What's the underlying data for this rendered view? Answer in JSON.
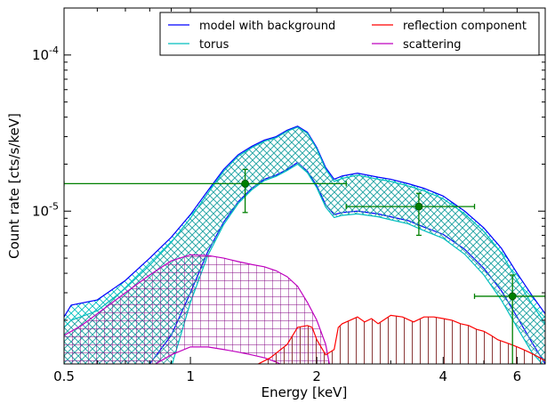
{
  "chart_data": {
    "type": "line",
    "title": "",
    "xlabel": "Energy [keV]",
    "ylabel": "Count rate [cts/s/keV]",
    "xscale": "log",
    "yscale": "log",
    "xlim": [
      0.5,
      7.0
    ],
    "ylim": [
      1.05e-06,
      0.0002
    ],
    "grid": false,
    "legend_position": "top-right",
    "x_ticks": [
      {
        "value": 0.5,
        "label": "0.5"
      },
      {
        "value": 1,
        "label": "1"
      },
      {
        "value": 2,
        "label": "2"
      },
      {
        "value": 4,
        "label": "4"
      },
      {
        "value": 6,
        "label": "6"
      }
    ],
    "y_ticks": [
      {
        "value": 1e-05,
        "base": "10",
        "exp": "-5"
      },
      {
        "value": 0.0001,
        "base": "10",
        "exp": "-4"
      }
    ],
    "legend": [
      {
        "label": "model with background",
        "color": "#0000ff"
      },
      {
        "label": "reflection component",
        "color": "#ff0000"
      },
      {
        "label": "torus",
        "color": "#00bfbf"
      },
      {
        "label": "scattering",
        "color": "#bf00bf"
      }
    ],
    "bands": [
      {
        "name": "model with background",
        "color": "#0000ff",
        "hatch_color": "#00bfbf",
        "x": [
          0.5,
          0.52,
          0.6,
          0.7,
          0.8,
          0.9,
          1.0,
          1.1,
          1.2,
          1.3,
          1.4,
          1.5,
          1.6,
          1.7,
          1.8,
          1.9,
          2.0,
          2.1,
          2.2,
          2.3,
          2.5,
          2.8,
          3.0,
          3.3,
          3.6,
          4.0,
          4.5,
          5.0,
          5.5,
          6.0,
          6.5,
          7.0
        ],
        "upper": [
          2.1e-06,
          2.5e-06,
          2.7e-06,
          3.6e-06,
          5e-06,
          6.8e-06,
          9.5e-06,
          1.35e-05,
          1.85e-05,
          2.3e-05,
          2.6e-05,
          2.85e-05,
          3e-05,
          3.3e-05,
          3.5e-05,
          3.2e-05,
          2.55e-05,
          1.9e-05,
          1.6e-05,
          1.68e-05,
          1.75e-05,
          1.65e-05,
          1.6e-05,
          1.5e-05,
          1.4e-05,
          1.25e-05,
          1e-05,
          7.8e-06,
          5.8e-06,
          4e-06,
          2.9e-06,
          2.2e-06
        ],
        "lower": [
          1e-06,
          1e-06,
          1e-06,
          1e-06,
          1.05e-06,
          1.6e-06,
          3e-06,
          5.5e-06,
          8.5e-06,
          1.15e-05,
          1.4e-05,
          1.6e-05,
          1.7e-05,
          1.85e-05,
          2.05e-05,
          1.8e-05,
          1.45e-05,
          1.1e-05,
          9.5e-06,
          9.8e-06,
          1e-05,
          9.6e-06,
          9.2e-06,
          8.7e-06,
          7.9e-06,
          7.1e-06,
          5.7e-06,
          4.3e-06,
          3.1e-06,
          2.1e-06,
          1.45e-06,
          1.05e-06
        ]
      },
      {
        "name": "torus",
        "color": "#00bfbf",
        "hatch_color": "#00bfbf",
        "x": [
          0.5,
          0.52,
          0.6,
          0.7,
          0.8,
          0.9,
          1.0,
          1.1,
          1.2,
          1.3,
          1.4,
          1.5,
          1.6,
          1.7,
          1.8,
          1.9,
          2.0,
          2.1,
          2.2,
          2.3,
          2.5,
          2.8,
          3.0,
          3.3,
          3.6,
          4.0,
          4.5,
          5.0,
          5.5,
          6.0,
          6.5,
          7.0
        ],
        "upper": [
          1.8e-06,
          2e-06,
          2.3e-06,
          3.2e-06,
          4.5e-06,
          6.3e-06,
          9e-06,
          1.3e-05,
          1.8e-05,
          2.25e-05,
          2.55e-05,
          2.8e-05,
          2.95e-05,
          3.25e-05,
          3.45e-05,
          3.15e-05,
          2.5e-05,
          1.85e-05,
          1.55e-05,
          1.62e-05,
          1.7e-05,
          1.6e-05,
          1.55e-05,
          1.45e-05,
          1.35e-05,
          1.2e-05,
          9.6e-06,
          7.4e-06,
          5.4e-06,
          3.6e-06,
          2.55e-06,
          1.9e-06
        ],
        "lower": [
          1e-06,
          1e-06,
          1e-06,
          1e-06,
          1e-06,
          1e-06,
          2.6e-06,
          5.2e-06,
          8.2e-06,
          1.12e-05,
          1.37e-05,
          1.57e-05,
          1.67e-05,
          1.82e-05,
          2e-05,
          1.76e-05,
          1.41e-05,
          1.06e-05,
          9.1e-06,
          9.4e-06,
          9.6e-06,
          9.2e-06,
          8.8e-06,
          8.3e-06,
          7.5e-06,
          6.7e-06,
          5.3e-06,
          3.9e-06,
          2.7e-06,
          1.8e-06,
          1.25e-06,
          1e-06
        ]
      },
      {
        "name": "scattering",
        "color": "#bf00bf",
        "hatch_color": "#800080",
        "x": [
          0.5,
          0.55,
          0.6,
          0.7,
          0.8,
          0.9,
          1.0,
          1.1,
          1.2,
          1.3,
          1.4,
          1.5,
          1.6,
          1.7,
          1.8,
          1.9,
          2.0,
          2.1,
          2.15
        ],
        "upper": [
          1.6e-06,
          1.85e-06,
          2.2e-06,
          3e-06,
          3.9e-06,
          4.8e-06,
          5.25e-06,
          5.2e-06,
          5e-06,
          4.75e-06,
          4.55e-06,
          4.4e-06,
          4.15e-06,
          3.8e-06,
          3.3e-06,
          2.6e-06,
          2e-06,
          1.4e-06,
          1e-06
        ],
        "lower": [
          1e-06,
          1e-06,
          1e-06,
          1e-06,
          1e-06,
          1.2e-06,
          1.35e-06,
          1.35e-06,
          1.3e-06,
          1.25e-06,
          1.2e-06,
          1.15e-06,
          1.08e-06,
          1e-06,
          1e-06,
          1e-06,
          1e-06,
          1e-06,
          1e-06
        ]
      },
      {
        "name": "reflection component",
        "color": "#ff0000",
        "hatch_color": "#8b0000",
        "x": [
          1.4,
          1.55,
          1.7,
          1.8,
          1.9,
          1.95,
          2.0,
          2.1,
          2.2,
          2.25,
          2.3,
          2.4,
          2.5,
          2.6,
          2.7,
          2.8,
          3.0,
          3.2,
          3.4,
          3.6,
          3.8,
          4.0,
          4.2,
          4.4,
          4.6,
          4.8,
          5.0,
          5.2,
          5.4,
          5.6,
          5.8,
          6.0,
          6.2,
          6.4,
          6.6,
          7.0
        ],
        "upper": [
          1e-06,
          1.15e-06,
          1.4e-06,
          1.8e-06,
          1.85e-06,
          1.8e-06,
          1.5e-06,
          1.2e-06,
          1.3e-06,
          1.8e-06,
          1.9e-06,
          2e-06,
          2.1e-06,
          1.95e-06,
          2.05e-06,
          1.9e-06,
          2.15e-06,
          2.1e-06,
          1.95e-06,
          2.1e-06,
          2.1e-06,
          2.05e-06,
          2e-06,
          1.9e-06,
          1.85e-06,
          1.75e-06,
          1.7e-06,
          1.6e-06,
          1.5e-06,
          1.45e-06,
          1.4e-06,
          1.35e-06,
          1.3e-06,
          1.25e-06,
          1.2e-06,
          1.1e-06
        ],
        "lower": [
          1e-06,
          1e-06,
          1e-06,
          1e-06,
          1e-06,
          1e-06,
          1e-06,
          1e-06,
          1e-06,
          1e-06,
          1e-06,
          1e-06,
          1e-06,
          1e-06,
          1e-06,
          1e-06,
          1e-06,
          1e-06,
          1e-06,
          1e-06,
          1e-06,
          1e-06,
          1e-06,
          1e-06,
          1e-06,
          1e-06,
          1e-06,
          1e-06,
          1e-06,
          1e-06,
          1e-06,
          1e-06,
          1e-06,
          1e-06,
          1e-06,
          1e-06
        ]
      }
    ],
    "data_points": {
      "color": "#008000",
      "points": [
        {
          "x": 1.35,
          "y": 1.5e-05,
          "xerr_low": 0.5,
          "xerr_high": 2.35,
          "yerr_low": 9.8e-06,
          "yerr_high": 1.85e-05
        },
        {
          "x": 3.5,
          "y": 1.07e-05,
          "xerr_low": 2.35,
          "xerr_high": 4.75,
          "yerr_low": 7e-06,
          "yerr_high": 1.3e-05
        },
        {
          "x": 5.85,
          "y": 2.85e-06,
          "xerr_low": 4.75,
          "xerr_high": 7.0,
          "yerr_low": 1.05e-06,
          "yerr_high": 3.9e-06
        }
      ]
    }
  }
}
